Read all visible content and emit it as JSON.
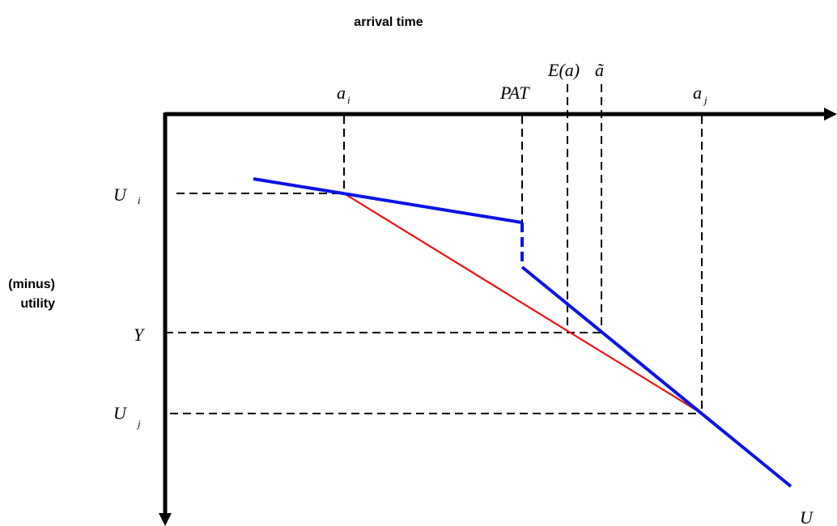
{
  "titles": {
    "x_axis_label": "arrival time",
    "y_axis_label_line1": "(minus)",
    "y_axis_label_line2": "utility"
  },
  "x_markers": {
    "a_i": {
      "main": "a",
      "sub": "i"
    },
    "pat": "PAT",
    "expected_a": "E(a)",
    "a_tilde": "ã",
    "a_j": {
      "main": "a",
      "sub": "j"
    }
  },
  "y_markers": {
    "u_i": {
      "main": "U",
      "sub": "i"
    },
    "y": "Y",
    "u_j": {
      "main": "U",
      "sub": "j"
    }
  },
  "curve_label": "U",
  "colors": {
    "utility_curve": "#0a14e6",
    "chord": "#ee1111",
    "axes": "#000000"
  }
}
